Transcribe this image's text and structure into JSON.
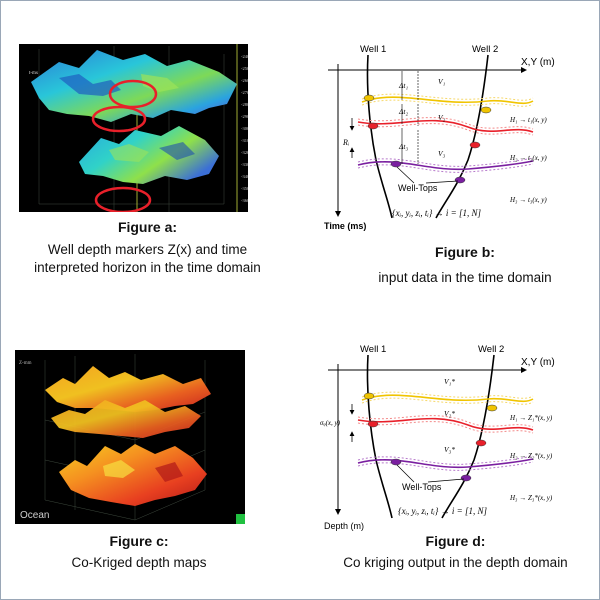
{
  "panels": {
    "a": {
      "title": "Figure a:",
      "line1": "Well depth markers Z(x) and time",
      "line2": "interpreted horizon in the time domain",
      "axis_label": "t-ms",
      "ticks": [
        "-2400",
        "-2500",
        "-2600",
        "-2700",
        "-2800",
        "-2900",
        "-3000",
        "-3100",
        "-3200",
        "-3300",
        "-3400",
        "-3500",
        "-3600"
      ]
    },
    "b": {
      "title": "Figure b:",
      "line1": "input data in the time domain",
      "well1": "Well 1",
      "well2": "Well 2",
      "xy_axis": "X,Y (m)",
      "y_axis": "Time (ms)",
      "dt1": "Δt₁",
      "dt2": "Δt₂",
      "dt3": "Δt₃",
      "v1": "V₁",
      "v2": "V₂",
      "v3": "V₃",
      "r": "Rᵢ",
      "h1": "H₁ → t₁(x, y)",
      "h2": "H₂ → t₂(x, y)",
      "h3": "H₃ → t₃(x, y)",
      "well_tops": "Well-Tops",
      "formula": "{xᵢ, yᵢ, zᵢ, tᵢ} → i = [1, N]"
    },
    "c": {
      "title": "Figure c:",
      "line1": "Co-Kriged depth maps",
      "logo": "Ocean",
      "axis_label": "Z-mm"
    },
    "d": {
      "title": "Figure d:",
      "line1": "Co kriging output in the depth domain",
      "well1": "Well 1",
      "well2": "Well 2",
      "xy_axis": "X,Y (m)",
      "y_axis": "Depth (m)",
      "v1": "V₁*",
      "v2": "V₂*",
      "v3": "V₃*",
      "sigma": "σᵩ(x, y)",
      "h1": "H₁ → Z₁*(x, y)",
      "h2": "H₂ → Z₂*(x, y)",
      "h3": "H₃ → Z₃*(x, y)",
      "well_tops": "Well-Tops",
      "formula": "{xᵢ, yᵢ, zᵢ, tᵢ} → i = [1, N]"
    }
  },
  "colors": {
    "horizon1": "#f0c400",
    "horizon2": "#e8202a",
    "horizon3": "#7a1fa0",
    "frame": "#9aa7b7"
  }
}
